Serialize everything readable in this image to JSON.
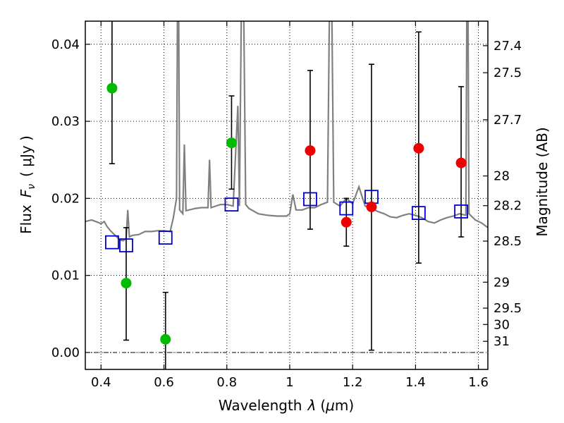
{
  "chart_data": {
    "type": "scatter",
    "xlabel": "Wavelength",
    "xlabel_symbol": "λ",
    "xlabel_unit_prefix": "(",
    "xlabel_unit_mu": "μ",
    "xlabel_unit_rest": "m)",
    "ylabel": "Flux",
    "ylabel_symbol_F": "F",
    "ylabel_symbol_sub": "ν",
    "ylabel_unit": "( μJy )",
    "ylabel_right": "Magnitude (AB)",
    "xlim": [
      0.35,
      1.63
    ],
    "ylim": [
      -0.0022,
      0.043
    ],
    "grid": true,
    "x_ticks": [
      {
        "value": 0.4,
        "label": "0.4"
      },
      {
        "value": 0.6,
        "label": "0.6"
      },
      {
        "value": 0.8,
        "label": "0.8"
      },
      {
        "value": 1.0,
        "label": "1"
      },
      {
        "value": 1.2,
        "label": "1.2"
      },
      {
        "value": 1.4,
        "label": "1.4"
      },
      {
        "value": 1.6,
        "label": "1.6"
      }
    ],
    "y_ticks": [
      {
        "value": 0.0,
        "label": "0.00"
      },
      {
        "value": 0.01,
        "label": "0.01"
      },
      {
        "value": 0.02,
        "label": "0.02"
      },
      {
        "value": 0.03,
        "label": "0.03"
      },
      {
        "value": 0.04,
        "label": "0.04"
      }
    ],
    "mag_ticks": [
      {
        "value": 27.4,
        "label": "27.4"
      },
      {
        "value": 27.5,
        "label": "27.5"
      },
      {
        "value": 27.7,
        "label": "27.7"
      },
      {
        "value": 28.0,
        "label": "28"
      },
      {
        "value": 28.2,
        "label": "28.2"
      },
      {
        "value": 28.5,
        "label": "28.5"
      },
      {
        "value": 29.0,
        "label": "29"
      },
      {
        "value": 29.5,
        "label": "29.5"
      },
      {
        "value": 30.0,
        "label": "30"
      },
      {
        "value": 31.0,
        "label": "31"
      }
    ],
    "series": [
      {
        "name": "model spectrum",
        "kind": "line",
        "color": "#808080",
        "points": [
          [
            0.35,
            0.017
          ],
          [
            0.37,
            0.0172
          ],
          [
            0.39,
            0.0169
          ],
          [
            0.4,
            0.0167
          ],
          [
            0.41,
            0.017
          ],
          [
            0.42,
            0.0163
          ],
          [
            0.43,
            0.0158
          ],
          [
            0.44,
            0.0154
          ],
          [
            0.45,
            0.015
          ],
          [
            0.46,
            0.0146
          ],
          [
            0.47,
            0.0145
          ],
          [
            0.48,
            0.0148
          ],
          [
            0.485,
            0.0185
          ],
          [
            0.49,
            0.015
          ],
          [
            0.5,
            0.0152
          ],
          [
            0.52,
            0.0153
          ],
          [
            0.54,
            0.0157
          ],
          [
            0.56,
            0.0157
          ],
          [
            0.58,
            0.0158
          ],
          [
            0.6,
            0.0158
          ],
          [
            0.62,
            0.0157
          ],
          [
            0.63,
            0.0175
          ],
          [
            0.64,
            0.02
          ],
          [
            0.645,
            0.06
          ],
          [
            0.65,
            0.0185
          ],
          [
            0.66,
            0.018
          ],
          [
            0.665,
            0.027
          ],
          [
            0.67,
            0.0184
          ],
          [
            0.7,
            0.0187
          ],
          [
            0.72,
            0.0188
          ],
          [
            0.74,
            0.0188
          ],
          [
            0.745,
            0.025
          ],
          [
            0.75,
            0.0188
          ],
          [
            0.78,
            0.0192
          ],
          [
            0.8,
            0.0192
          ],
          [
            0.82,
            0.019
          ],
          [
            0.835,
            0.032
          ],
          [
            0.84,
            0.019
          ],
          [
            0.85,
            0.06
          ],
          [
            0.86,
            0.0192
          ],
          [
            0.87,
            0.0187
          ],
          [
            0.9,
            0.018
          ],
          [
            0.93,
            0.0178
          ],
          [
            0.96,
            0.0177
          ],
          [
            0.99,
            0.0177
          ],
          [
            1.0,
            0.018
          ],
          [
            1.01,
            0.0205
          ],
          [
            1.02,
            0.0185
          ],
          [
            1.04,
            0.0185
          ],
          [
            1.06,
            0.0188
          ],
          [
            1.08,
            0.0188
          ],
          [
            1.1,
            0.0192
          ],
          [
            1.12,
            0.0195
          ],
          [
            1.13,
            0.06
          ],
          [
            1.14,
            0.0195
          ],
          [
            1.16,
            0.019
          ],
          [
            1.18,
            0.02
          ],
          [
            1.2,
            0.0193
          ],
          [
            1.22,
            0.0215
          ],
          [
            1.24,
            0.019
          ],
          [
            1.26,
            0.0187
          ],
          [
            1.28,
            0.0183
          ],
          [
            1.3,
            0.018
          ],
          [
            1.32,
            0.0176
          ],
          [
            1.34,
            0.0175
          ],
          [
            1.36,
            0.0178
          ],
          [
            1.38,
            0.018
          ],
          [
            1.4,
            0.0178
          ],
          [
            1.42,
            0.0175
          ],
          [
            1.44,
            0.017
          ],
          [
            1.46,
            0.0168
          ],
          [
            1.48,
            0.0172
          ],
          [
            1.5,
            0.0175
          ],
          [
            1.52,
            0.0177
          ],
          [
            1.54,
            0.018
          ],
          [
            1.56,
            0.0178
          ],
          [
            1.565,
            0.06
          ],
          [
            1.57,
            0.018
          ],
          [
            1.59,
            0.0172
          ],
          [
            1.61,
            0.0168
          ],
          [
            1.63,
            0.0162
          ]
        ]
      },
      {
        "name": "green points",
        "kind": "scatter-errorbar",
        "color": "#00bb00",
        "points": [
          {
            "x": 0.435,
            "y": 0.0343,
            "yerr_lo": 0.0245,
            "yerr_hi": 0.045
          },
          {
            "x": 0.48,
            "y": 0.009,
            "yerr_lo": 0.0016,
            "yerr_hi": 0.0162
          },
          {
            "x": 0.605,
            "y": 0.0017,
            "yerr_lo": -0.003,
            "yerr_hi": 0.0078
          },
          {
            "x": 0.815,
            "y": 0.0272,
            "yerr_lo": 0.0212,
            "yerr_hi": 0.0333
          }
        ]
      },
      {
        "name": "red points",
        "kind": "scatter-errorbar",
        "color": "#ee0000",
        "points": [
          {
            "x": 1.065,
            "y": 0.0262,
            "yerr_lo": 0.016,
            "yerr_hi": 0.0366
          },
          {
            "x": 1.18,
            "y": 0.0169,
            "yerr_lo": 0.0138,
            "yerr_hi": 0.02
          },
          {
            "x": 1.26,
            "y": 0.0189,
            "yerr_lo": 0.0003,
            "yerr_hi": 0.0374
          },
          {
            "x": 1.41,
            "y": 0.0265,
            "yerr_lo": 0.0116,
            "yerr_hi": 0.0416
          },
          {
            "x": 1.545,
            "y": 0.0246,
            "yerr_lo": 0.015,
            "yerr_hi": 0.0345
          }
        ]
      },
      {
        "name": "model photometry",
        "kind": "open-square",
        "color": "#0000cc",
        "points": [
          {
            "x": 0.435,
            "y": 0.0143
          },
          {
            "x": 0.48,
            "y": 0.0139
          },
          {
            "x": 0.605,
            "y": 0.0149
          },
          {
            "x": 0.815,
            "y": 0.0192
          },
          {
            "x": 1.065,
            "y": 0.0199
          },
          {
            "x": 1.18,
            "y": 0.0187
          },
          {
            "x": 1.26,
            "y": 0.0202
          },
          {
            "x": 1.41,
            "y": 0.0181
          },
          {
            "x": 1.545,
            "y": 0.0183
          }
        ]
      }
    ],
    "colors": {
      "errorbar": "#000000",
      "zero_line": "#000000"
    }
  }
}
